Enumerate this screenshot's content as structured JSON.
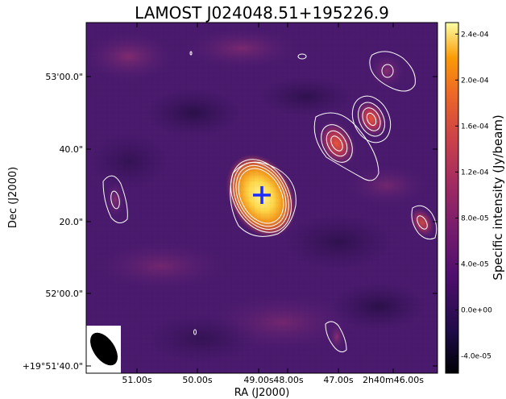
{
  "figure": {
    "title": "LAMOST J024048.51+195226.9",
    "xlabel": "RA (J2000)",
    "ylabel": "Dec (J2000)",
    "x_ticks": [
      "51.00s",
      "50.00s",
      "49.00s",
      "48.00s",
      "47.00s",
      "2h40m46.00s"
    ],
    "y_ticks": [
      "53'00.0\"",
      "40.0\"",
      "20.0\"",
      "52'00.0\"",
      "+19°51'40.0\""
    ]
  },
  "colorbar": {
    "label": "Specific intensity (Jy/beam)",
    "ticks": [
      "2.4e-04",
      "2.0e-04",
      "1.6e-04",
      "1.2e-04",
      "8.0e-05",
      "4.0e-05",
      "0.0e+00",
      "-4.0e-05"
    ],
    "tick_values": [
      0.00024,
      0.0002,
      0.00016,
      0.00012,
      8e-05,
      4e-05,
      0.0,
      -4e-05
    ],
    "range": [
      -5.5e-05,
      0.00025
    ],
    "colormap": "inferno-like"
  },
  "colors": {
    "background_map": "#4a1a6e",
    "contour": "#ffffff",
    "marker": "#1a2cff",
    "source_core": "#ffe86a"
  },
  "marker": {
    "symbol": "plus"
  }
}
